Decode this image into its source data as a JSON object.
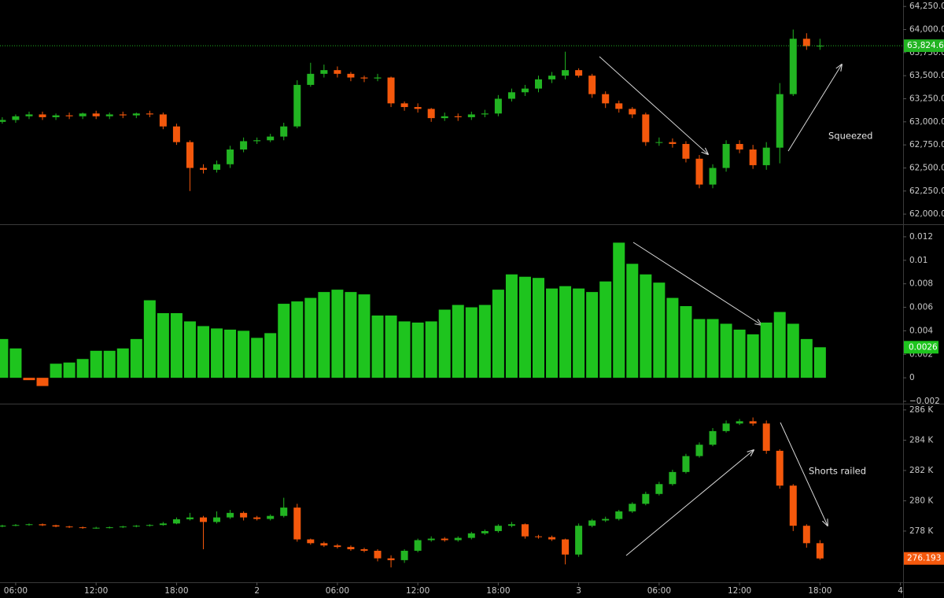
{
  "chart_data": [
    {
      "type": "candlestick",
      "up_color": "#22b422",
      "down_color": "#f4580c",
      "xlim": [
        4.83,
        72.2
      ],
      "ylim": [
        61890,
        64320
      ],
      "yticks": [
        {
          "value": 62000,
          "label": "62,000.0"
        },
        {
          "value": 62250,
          "label": "62,250.0"
        },
        {
          "value": 62500,
          "label": "62,500.0"
        },
        {
          "value": 62750,
          "label": "62,750.0"
        },
        {
          "value": 63000,
          "label": "63,000.0"
        },
        {
          "value": 63250,
          "label": "63,250.0"
        },
        {
          "value": 63500,
          "label": "63,500.0"
        },
        {
          "value": 63750,
          "label": "63,750.0"
        },
        {
          "value": 64000,
          "label": "64,000.0"
        },
        {
          "value": 64250,
          "label": "64,250.0"
        }
      ],
      "x": [
        5,
        6,
        7,
        8,
        9,
        10,
        11,
        12,
        13,
        14,
        15,
        16,
        17,
        18,
        19,
        20,
        21,
        22,
        23,
        24,
        25,
        26,
        27,
        28,
        29,
        30,
        31,
        32,
        33,
        34,
        35,
        36,
        37,
        38,
        39,
        40,
        41,
        42,
        43,
        44,
        45,
        46,
        47,
        48,
        49,
        50,
        51,
        52,
        53,
        54,
        55,
        56,
        57,
        58,
        59,
        60,
        61,
        62,
        63,
        64,
        65,
        66
      ],
      "open": [
        63000,
        63020,
        63060,
        63080,
        63050,
        63070,
        63060,
        63090,
        63060,
        63080,
        63070,
        63090,
        63080,
        62950,
        62780,
        62500,
        62480,
        62540,
        62700,
        62790,
        62800,
        62840,
        62950,
        63400,
        63520,
        63560,
        63520,
        63480,
        63470,
        63480,
        63200,
        63160,
        63140,
        63040,
        63060,
        63050,
        63080,
        63090,
        63250,
        63320,
        63360,
        63460,
        63500,
        63560,
        63500,
        63300,
        63200,
        63140,
        63080,
        62780,
        62780,
        62760,
        62600,
        62320,
        62500,
        62760,
        62700,
        62530,
        62720,
        63300,
        63900,
        63820
      ],
      "high": [
        63050,
        63080,
        63110,
        63110,
        63090,
        63100,
        63100,
        63120,
        63100,
        63110,
        63100,
        63120,
        63100,
        62980,
        62800,
        62540,
        62580,
        62740,
        62830,
        62830,
        62870,
        62990,
        63450,
        63640,
        63620,
        63600,
        63540,
        63500,
        63520,
        63490,
        63220,
        63200,
        63150,
        63100,
        63090,
        63110,
        63130,
        63290,
        63360,
        63400,
        63500,
        63540,
        63760,
        63580,
        63520,
        63330,
        63230,
        63160,
        63100,
        62830,
        62820,
        62790,
        62640,
        62540,
        62800,
        62800,
        62750,
        62780,
        63420,
        64000,
        63960,
        63900
      ],
      "low": [
        62980,
        62990,
        63030,
        63020,
        63020,
        63030,
        63030,
        63030,
        63030,
        63040,
        63040,
        63050,
        62920,
        62750,
        62250,
        62440,
        62450,
        62500,
        62670,
        62760,
        62780,
        62800,
        62930,
        63380,
        63480,
        63480,
        63440,
        63430,
        63440,
        63160,
        63120,
        63100,
        63000,
        63010,
        63010,
        63020,
        63050,
        63060,
        63220,
        63280,
        63320,
        63420,
        63460,
        63480,
        63260,
        63150,
        63100,
        63040,
        62740,
        62740,
        62720,
        62560,
        62280,
        62280,
        62460,
        62660,
        62490,
        62480,
        62550,
        63280,
        63780,
        63780
      ],
      "close": [
        63020,
        63060,
        63080,
        63050,
        63070,
        63060,
        63090,
        63060,
        63080,
        63070,
        63090,
        63080,
        62950,
        62780,
        62500,
        62480,
        62540,
        62700,
        62790,
        62800,
        62840,
        62950,
        63400,
        63520,
        63560,
        63520,
        63480,
        63470,
        63480,
        63200,
        63160,
        63140,
        63040,
        63060,
        63050,
        63080,
        63090,
        63250,
        63320,
        63360,
        63460,
        63500,
        63560,
        63500,
        63300,
        63200,
        63140,
        63080,
        62780,
        62780,
        62760,
        62600,
        62320,
        62500,
        62760,
        62700,
        62530,
        62720,
        63300,
        63900,
        63820,
        63824.6
      ],
      "last": {
        "value": 63824.6,
        "label": "63,824.6"
      },
      "last_color": "#22b422",
      "annotation": "Squeezed"
    },
    {
      "type": "bar",
      "color": "#1ec41e",
      "down_color": "#f4580c",
      "xlim": [
        4.83,
        72.2
      ],
      "ylim": [
        -0.0022,
        0.013
      ],
      "yticks": [
        {
          "value": -0.002,
          "label": "−0.002"
        },
        0,
        0.002,
        0.004,
        0.006,
        0.008,
        0.01,
        0.012
      ],
      "x": [
        5,
        6,
        7,
        8,
        9,
        10,
        11,
        12,
        13,
        14,
        15,
        16,
        17,
        18,
        19,
        20,
        21,
        22,
        23,
        24,
        25,
        26,
        27,
        28,
        29,
        30,
        31,
        32,
        33,
        34,
        35,
        36,
        37,
        38,
        39,
        40,
        41,
        42,
        43,
        44,
        45,
        46,
        47,
        48,
        49,
        50,
        51,
        52,
        53,
        54,
        55,
        56,
        57,
        58,
        59,
        60,
        61,
        62,
        63,
        64,
        65,
        66
      ],
      "values": [
        0.0033,
        0.0025,
        -0.0002,
        -0.0007,
        0.0012,
        0.0013,
        0.0016,
        0.0023,
        0.0023,
        0.0025,
        0.0033,
        0.0066,
        0.0055,
        0.0055,
        0.0048,
        0.0044,
        0.0042,
        0.0041,
        0.004,
        0.0034,
        0.0038,
        0.0063,
        0.0065,
        0.0068,
        0.0073,
        0.0075,
        0.0073,
        0.0071,
        0.0053,
        0.0053,
        0.0048,
        0.0047,
        0.0048,
        0.0058,
        0.0062,
        0.006,
        0.0062,
        0.0075,
        0.0088,
        0.0086,
        0.0085,
        0.0076,
        0.0078,
        0.0076,
        0.0073,
        0.0082,
        0.0115,
        0.0097,
        0.0088,
        0.0081,
        0.0068,
        0.0061,
        0.005,
        0.005,
        0.0046,
        0.0041,
        0.0037,
        0.0047,
        0.0056,
        0.0046,
        0.0033,
        0.0026
      ],
      "last_color": "#1ec41e"
    },
    {
      "type": "candlestick",
      "up_color": "#22b422",
      "down_color": "#f4580c",
      "xlim": [
        4.83,
        72.2
      ],
      "ylim": [
        274620,
        286360
      ],
      "yticks": [
        {
          "value": 278000,
          "label": "278 K"
        },
        {
          "value": 280000,
          "label": "280 K"
        },
        {
          "value": 282000,
          "label": "282 K"
        },
        {
          "value": 284000,
          "label": "284 K"
        },
        {
          "value": 286000,
          "label": "286 K"
        }
      ],
      "xticks": [
        {
          "value": 6,
          "label": "06:00"
        },
        {
          "value": 12,
          "label": "12:00"
        },
        {
          "value": 18,
          "label": "18:00"
        },
        {
          "value": 24,
          "label": "2"
        },
        {
          "value": 30,
          "label": "06:00"
        },
        {
          "value": 36,
          "label": "12:00"
        },
        {
          "value": 42,
          "label": "18:00"
        },
        {
          "value": 48,
          "label": "3"
        },
        {
          "value": 54,
          "label": "06:00"
        },
        {
          "value": 60,
          "label": "12:00"
        },
        {
          "value": 66,
          "label": "18:00"
        },
        {
          "value": 72,
          "label": "4"
        }
      ],
      "x": [
        5,
        6,
        7,
        8,
        9,
        10,
        11,
        12,
        13,
        14,
        15,
        16,
        17,
        18,
        19,
        20,
        21,
        22,
        23,
        24,
        25,
        26,
        27,
        28,
        29,
        30,
        31,
        32,
        33,
        34,
        35,
        36,
        37,
        38,
        39,
        40,
        41,
        42,
        43,
        44,
        45,
        46,
        47,
        48,
        49,
        50,
        51,
        52,
        53,
        54,
        55,
        56,
        57,
        58,
        59,
        60,
        61,
        62,
        63,
        64,
        65,
        66
      ],
      "open": [
        278300,
        278360,
        278400,
        278450,
        278380,
        278300,
        278250,
        278200,
        278220,
        278250,
        278300,
        278350,
        278400,
        278500,
        278780,
        278900,
        278600,
        278900,
        279200,
        278900,
        278800,
        279000,
        279550,
        277450,
        277200,
        277050,
        276950,
        276800,
        276700,
        276200,
        276080,
        276700,
        277400,
        277500,
        277400,
        277550,
        277850,
        278000,
        278350,
        278450,
        277650,
        277600,
        277450,
        276450,
        278350,
        278700,
        278800,
        279300,
        279800,
        280450,
        281100,
        281900,
        282950,
        283700,
        284600,
        285100,
        285250,
        285100,
        283300,
        281000,
        278350,
        277200
      ],
      "high": [
        278420,
        278460,
        278500,
        278500,
        278420,
        278350,
        278300,
        278280,
        278300,
        278350,
        278400,
        278450,
        278600,
        278900,
        279200,
        279000,
        279300,
        279400,
        279300,
        279000,
        279100,
        280200,
        279800,
        277500,
        277300,
        277150,
        277050,
        276900,
        276800,
        276400,
        276800,
        277500,
        277650,
        277600,
        277650,
        277950,
        278100,
        278450,
        278600,
        278500,
        277750,
        277700,
        277500,
        278500,
        278800,
        278950,
        279400,
        279900,
        280600,
        281250,
        282050,
        283100,
        283850,
        284800,
        285300,
        285400,
        285500,
        285300,
        283400,
        281100,
        278450,
        277400
      ],
      "low": [
        278250,
        278320,
        278350,
        278330,
        278250,
        278200,
        278150,
        278150,
        278170,
        278200,
        278250,
        278300,
        278350,
        278450,
        278700,
        276800,
        278500,
        278800,
        278700,
        278700,
        278700,
        278900,
        277300,
        277100,
        276950,
        276850,
        276700,
        276600,
        276000,
        275600,
        275900,
        276600,
        277300,
        277300,
        277300,
        277450,
        277750,
        277900,
        278250,
        277500,
        277500,
        277350,
        275800,
        276300,
        278250,
        278600,
        278700,
        279200,
        279700,
        280350,
        281000,
        281800,
        282850,
        283600,
        284500,
        285000,
        284950,
        283100,
        280800,
        278000,
        276900,
        276100
      ],
      "close": [
        278360,
        278400,
        278450,
        278380,
        278300,
        278250,
        278200,
        278220,
        278250,
        278300,
        278350,
        278400,
        278500,
        278780,
        278900,
        278600,
        278900,
        279200,
        278900,
        278800,
        279000,
        279550,
        277450,
        277200,
        277050,
        276950,
        276800,
        276700,
        276200,
        276080,
        276700,
        277400,
        277500,
        277400,
        277550,
        277850,
        278000,
        278350,
        278450,
        277650,
        277600,
        277450,
        276450,
        278350,
        278700,
        278800,
        279300,
        279800,
        280450,
        281100,
        281900,
        282950,
        283700,
        284600,
        285100,
        285250,
        285100,
        283300,
        281000,
        278350,
        277200,
        276193
      ],
      "last": {
        "value": 276193,
        "label": "276.193 K"
      },
      "last_color": "#f4580c",
      "annotation": "Shorts railed"
    }
  ]
}
